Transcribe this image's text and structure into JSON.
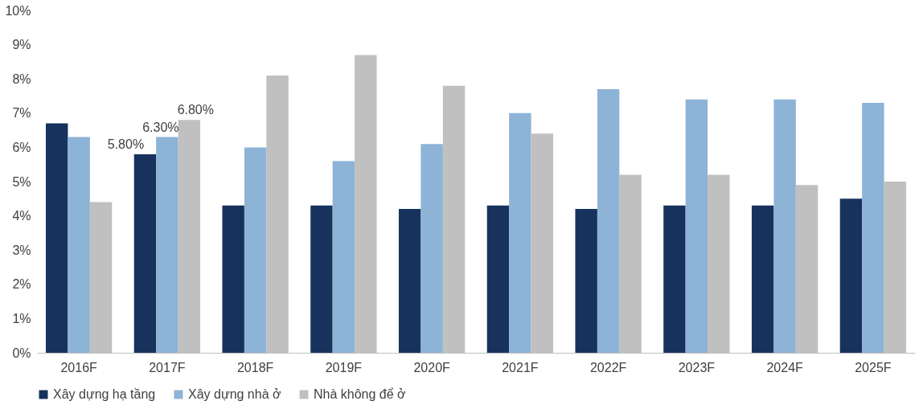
{
  "chart_data": {
    "type": "bar",
    "categories": [
      "2016F",
      "2017F",
      "2018F",
      "2019F",
      "2020F",
      "2021F",
      "2022F",
      "2023F",
      "2024F",
      "2025F"
    ],
    "series": [
      {
        "name": "Xây dựng hạ tầng",
        "color": "#17325c",
        "values": [
          6.7,
          5.8,
          4.3,
          4.3,
          4.2,
          4.3,
          4.2,
          4.3,
          4.3,
          4.5
        ],
        "value_labels": [
          null,
          "5.80%",
          null,
          null,
          null,
          null,
          null,
          null,
          null,
          null
        ]
      },
      {
        "name": "Xây dựng nhà ở",
        "color": "#8db3d6",
        "values": [
          6.3,
          6.3,
          6.0,
          5.6,
          6.1,
          7.0,
          7.7,
          7.4,
          7.4,
          7.3
        ],
        "value_labels": [
          null,
          "6.30%",
          null,
          null,
          null,
          null,
          null,
          null,
          null,
          null
        ]
      },
      {
        "name": "Nhà không để ở",
        "color": "#c0c0c0",
        "values": [
          4.4,
          6.8,
          8.1,
          8.7,
          7.8,
          6.4,
          5.2,
          5.2,
          4.9,
          5.0
        ],
        "value_labels": [
          null,
          "6.80%",
          null,
          null,
          null,
          null,
          null,
          null,
          null,
          null
        ]
      }
    ],
    "ylim": [
      0,
      10
    ],
    "yticks": [
      {
        "value": 0,
        "label": "0%"
      },
      {
        "value": 1,
        "label": "1%"
      },
      {
        "value": 2,
        "label": "2%"
      },
      {
        "value": 3,
        "label": "3%"
      },
      {
        "value": 4,
        "label": "4%"
      },
      {
        "value": 5,
        "label": "5%"
      },
      {
        "value": 6,
        "label": "6%"
      },
      {
        "value": 7,
        "label": "7%"
      },
      {
        "value": 8,
        "label": "8%"
      },
      {
        "value": 9,
        "label": "9%"
      },
      {
        "value": 10,
        "label": "10%"
      }
    ],
    "grid": false,
    "legend": "bottom"
  }
}
